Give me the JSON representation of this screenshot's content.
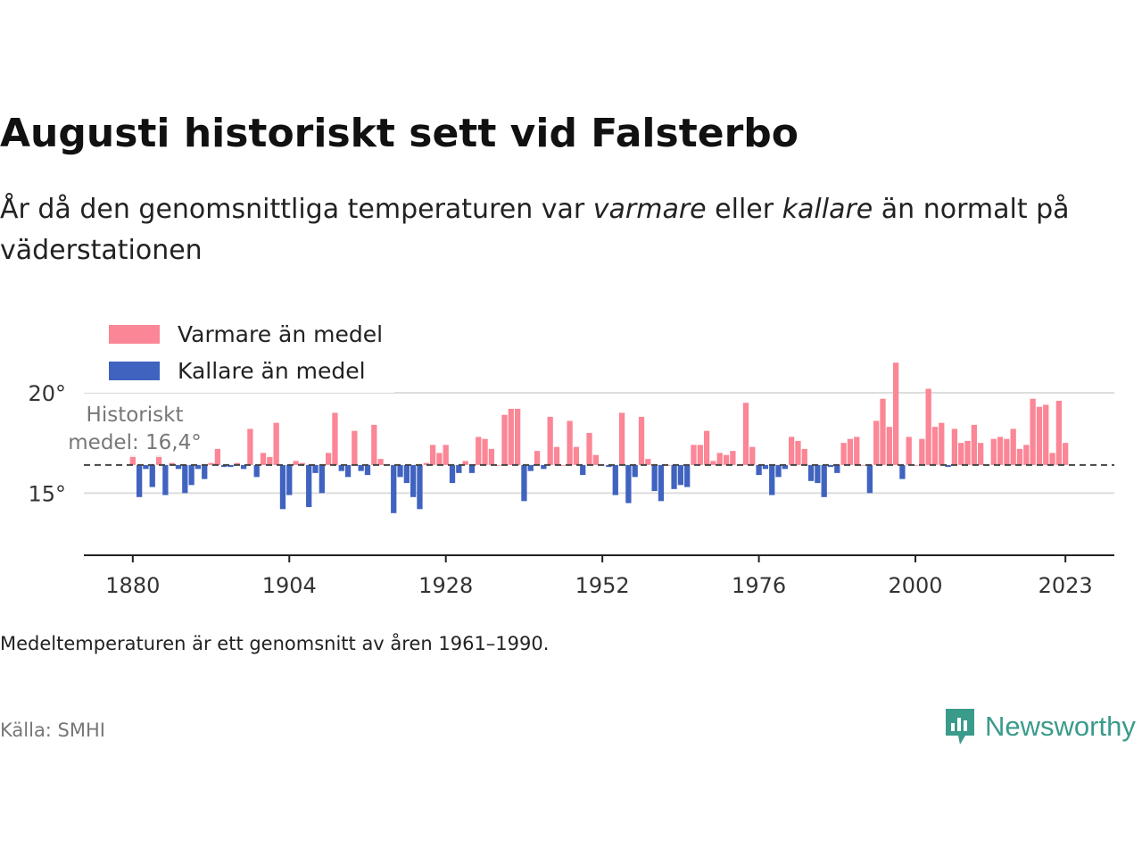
{
  "header": {
    "title": "Augusti historiskt sett vid Falsterbo",
    "subtitle_parts": [
      "År då den genomsnittliga temperaturen var ",
      "varmare",
      " eller ",
      "kallare",
      " än normalt på väderstationen"
    ]
  },
  "footer": {
    "note": "Medeltemperaturen är ett genomsnitt av åren 1961–1990.",
    "source": "Källa: SMHI",
    "brand": "Newsworthy"
  },
  "colors": {
    "warm": "#fb8696",
    "cold": "#4063c0",
    "brand": "#3a9b8b"
  },
  "chart_data": {
    "type": "bar",
    "baseline": 16.4,
    "baseline_label_lines": [
      "Historiskt",
      "medel: 16,4°"
    ],
    "ylim": [
      11.9,
      22.0
    ],
    "yticks": [
      15,
      20
    ],
    "ytick_labels": [
      "15°",
      "20°"
    ],
    "xlim": [
      1872.5,
      2030.5
    ],
    "xticks": [
      1880,
      1904,
      1928,
      1952,
      1976,
      2000,
      2023
    ],
    "xtick_labels": [
      "1880",
      "1904",
      "1928",
      "1952",
      "1976",
      "2000",
      "2023"
    ],
    "legend": [
      {
        "name": "Varmare än medel",
        "color": "#fb8696"
      },
      {
        "name": "Kallare än medel",
        "color": "#4063c0"
      }
    ],
    "legend_position": "top-left",
    "grid": "horizontal",
    "x": [
      1880,
      1881,
      1882,
      1883,
      1884,
      1885,
      1886,
      1887,
      1888,
      1889,
      1890,
      1891,
      1892,
      1893,
      1894,
      1895,
      1896,
      1897,
      1898,
      1899,
      1900,
      1901,
      1902,
      1903,
      1904,
      1905,
      1906,
      1907,
      1908,
      1909,
      1910,
      1911,
      1912,
      1913,
      1914,
      1915,
      1916,
      1917,
      1918,
      1919,
      1920,
      1921,
      1922,
      1923,
      1924,
      1925,
      1926,
      1927,
      1928,
      1929,
      1930,
      1931,
      1932,
      1933,
      1934,
      1935,
      1936,
      1937,
      1938,
      1939,
      1940,
      1941,
      1942,
      1943,
      1944,
      1945,
      1946,
      1947,
      1948,
      1949,
      1950,
      1951,
      1952,
      1953,
      1954,
      1955,
      1956,
      1957,
      1958,
      1959,
      1960,
      1961,
      1962,
      1963,
      1964,
      1965,
      1966,
      1967,
      1968,
      1969,
      1970,
      1971,
      1972,
      1973,
      1974,
      1975,
      1976,
      1977,
      1978,
      1979,
      1980,
      1981,
      1982,
      1983,
      1984,
      1985,
      1986,
      1987,
      1988,
      1989,
      1990,
      1991,
      1992,
      1993,
      1994,
      1995,
      1996,
      1997,
      1998,
      1999,
      2000,
      2001,
      2002,
      2003,
      2004,
      2005,
      2006,
      2007,
      2008,
      2009,
      2010,
      2011,
      2012,
      2013,
      2014,
      2015,
      2016,
      2017,
      2018,
      2019,
      2020,
      2021,
      2022,
      2023
    ],
    "values": [
      16.9,
      14.8,
      16.2,
      15.3,
      16.9,
      14.9,
      16.5,
      16.2,
      15.0,
      15.4,
      16.2,
      15.7,
      16.5,
      17.2,
      16.3,
      16.3,
      16.5,
      16.2,
      18.2,
      15.8,
      17.0,
      16.8,
      18.5,
      14.2,
      14.9,
      16.6,
      16.5,
      14.3,
      16.0,
      15.0,
      17.0,
      19.0,
      16.1,
      15.8,
      18.1,
      16.1,
      15.9,
      18.4,
      16.7,
      16.4,
      14.0,
      15.8,
      15.5,
      14.8,
      14.2,
      16.5,
      17.4,
      17.0,
      17.4,
      15.5,
      16.0,
      16.6,
      16.0,
      17.8,
      17.7,
      17.2,
      16.4,
      18.9,
      19.2,
      19.2,
      14.6,
      16.1,
      17.1,
      16.2,
      18.8,
      17.3,
      16.4,
      18.6,
      17.3,
      15.9,
      18.0,
      16.9,
      16.4,
      16.3,
      14.9,
      19.0,
      14.5,
      15.8,
      18.8,
      16.7,
      15.1,
      14.6,
      16.4,
      15.2,
      15.4,
      15.3,
      17.4,
      17.4,
      18.1,
      16.6,
      17.0,
      16.9,
      17.1,
      16.4,
      19.5,
      17.3,
      15.9,
      16.2,
      14.9,
      15.8,
      16.2,
      17.8,
      17.6,
      17.2,
      15.6,
      15.5,
      14.8,
      16.3,
      16.0,
      17.5,
      17.7,
      17.8,
      16.4,
      15.0,
      18.6,
      19.7,
      18.3,
      21.5,
      15.7,
      17.8,
      16.4,
      17.7,
      20.2,
      18.3,
      18.5,
      16.3,
      18.2,
      17.5,
      17.6,
      18.4,
      17.5,
      16.4,
      17.7,
      17.8,
      17.7,
      18.2,
      17.2,
      17.4,
      19.7,
      19.3,
      19.4,
      17.0,
      19.6,
      17.5
    ]
  }
}
